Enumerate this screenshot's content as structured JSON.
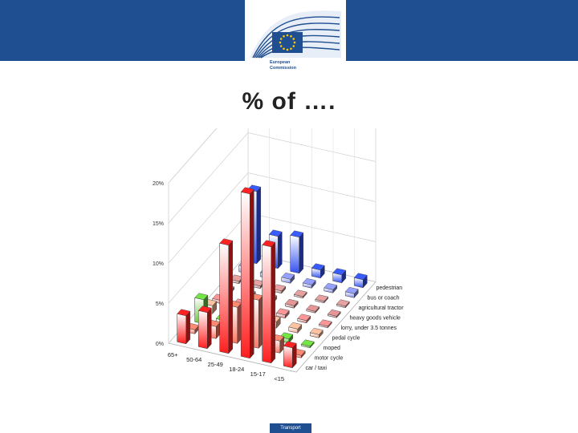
{
  "header": {
    "logo_text_line1": "European",
    "logo_text_line2": "Commission"
  },
  "slide": {
    "title": "% of ….",
    "footer_label": "Transport"
  },
  "colors": {
    "banner": "#1f4e91",
    "car_taxi": "#ff2020",
    "moped": "#60c030",
    "pedestrian": "#3050f0"
  },
  "chart_data": {
    "type": "bar",
    "subtype": "3d-bar",
    "title": "",
    "xlabel": "",
    "ylabel": "",
    "ylim": [
      0,
      20
    ],
    "y_ticks": [
      "0%",
      "5%",
      "10%",
      "15%",
      "20%"
    ],
    "x_categories": [
      "65+",
      "50-64",
      "25-49",
      "18-24",
      "15-17",
      "<15"
    ],
    "depth_categories": [
      "car / taxi",
      "motor cycle",
      "moped",
      "pedal cycle",
      "lorry, under 3.5 tonnes",
      "heavy goods vehicle",
      "agricultural tractor",
      "bus or coach",
      "pedestrian"
    ],
    "series": [
      {
        "name": "car / taxi",
        "values": [
          3.5,
          4.5,
          13.5,
          20.5,
          14.5,
          2.5
        ]
      },
      {
        "name": "motor cycle",
        "values": [
          0.5,
          1.5,
          4.5,
          6.0,
          1.5,
          0.3
        ]
      },
      {
        "name": "moped",
        "values": [
          3.0,
          1.0,
          0.5,
          0.3,
          0.5,
          0.2
        ]
      },
      {
        "name": "pedal cycle",
        "values": [
          1.0,
          1.0,
          1.5,
          0.8,
          0.5,
          0.4
        ]
      },
      {
        "name": "lorry, under 3.5 tonnes",
        "values": [
          0.4,
          0.4,
          0.5,
          0.4,
          0.3,
          0.2
        ]
      },
      {
        "name": "heavy goods vehicle",
        "values": [
          0.3,
          0.3,
          0.4,
          0.3,
          0.2,
          0.2
        ]
      },
      {
        "name": "agricultural tractor",
        "values": [
          0.3,
          0.3,
          0.3,
          0.2,
          0.2,
          0.2
        ]
      },
      {
        "name": "bus or coach",
        "values": [
          0.8,
          0.5,
          0.5,
          0.4,
          0.4,
          0.5
        ]
      },
      {
        "name": "pedestrian",
        "values": [
          9.0,
          4.0,
          4.5,
          1.0,
          1.0,
          1.0
        ]
      }
    ],
    "grid": true
  }
}
